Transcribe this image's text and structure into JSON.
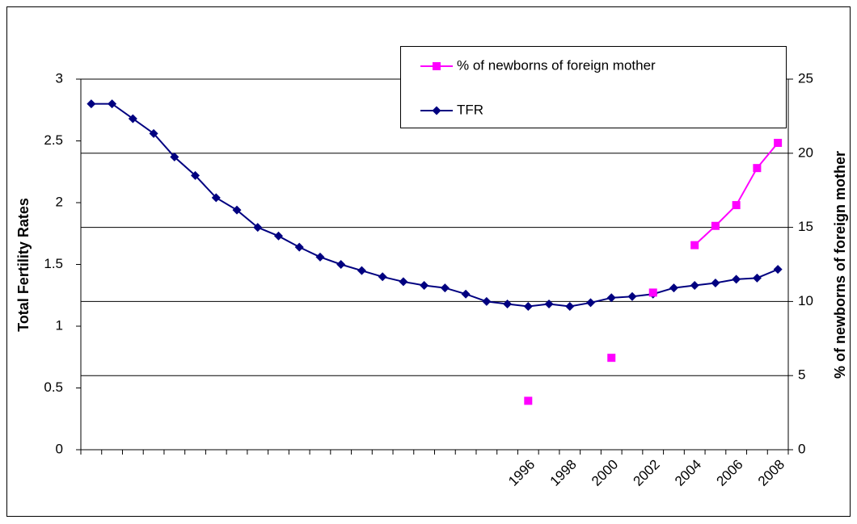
{
  "chart_data": {
    "type": "line",
    "y_label": "Total Fertility Rates",
    "y2_label": "% of newborns of foreign mother",
    "categories": [
      null,
      null,
      null,
      null,
      null,
      null,
      null,
      null,
      null,
      null,
      null,
      null,
      null,
      null,
      null,
      null,
      null,
      null,
      null,
      null,
      null,
      "1996",
      null,
      "1998",
      null,
      "2000",
      null,
      "2002",
      null,
      "2004",
      null,
      "2006",
      null,
      "2008"
    ],
    "series": [
      {
        "name": "% of newborns of foreign mother",
        "color": "#ff00ff",
        "marker": "square",
        "axis": "y2",
        "values": [
          null,
          null,
          null,
          null,
          null,
          null,
          null,
          null,
          null,
          null,
          null,
          null,
          null,
          null,
          null,
          null,
          null,
          null,
          null,
          null,
          null,
          3.3,
          null,
          null,
          null,
          6.2,
          null,
          10.6,
          null,
          13.8,
          15.1,
          16.5,
          19.0,
          20.7
        ]
      },
      {
        "name": "TFR",
        "color": "#000080",
        "marker": "diamond",
        "values": [
          2.8,
          2.8,
          2.68,
          2.56,
          2.37,
          2.22,
          2.04,
          1.94,
          1.8,
          1.73,
          1.64,
          1.56,
          1.5,
          1.45,
          1.4,
          1.36,
          1.33,
          1.31,
          1.26,
          1.2,
          1.18,
          1.16,
          1.18,
          1.16,
          1.19,
          1.23,
          1.24,
          1.26,
          1.31,
          1.33,
          1.35,
          1.38,
          1.39,
          1.46
        ]
      }
    ],
    "ylim": [
      0,
      3
    ],
    "yticks": [
      0,
      0.5,
      1,
      1.5,
      2,
      2.5,
      3
    ],
    "y2lim": [
      0,
      25
    ],
    "y2ticks": [
      0,
      5,
      10,
      15,
      20,
      25
    ],
    "grid": true,
    "legend_position": "top-right"
  }
}
